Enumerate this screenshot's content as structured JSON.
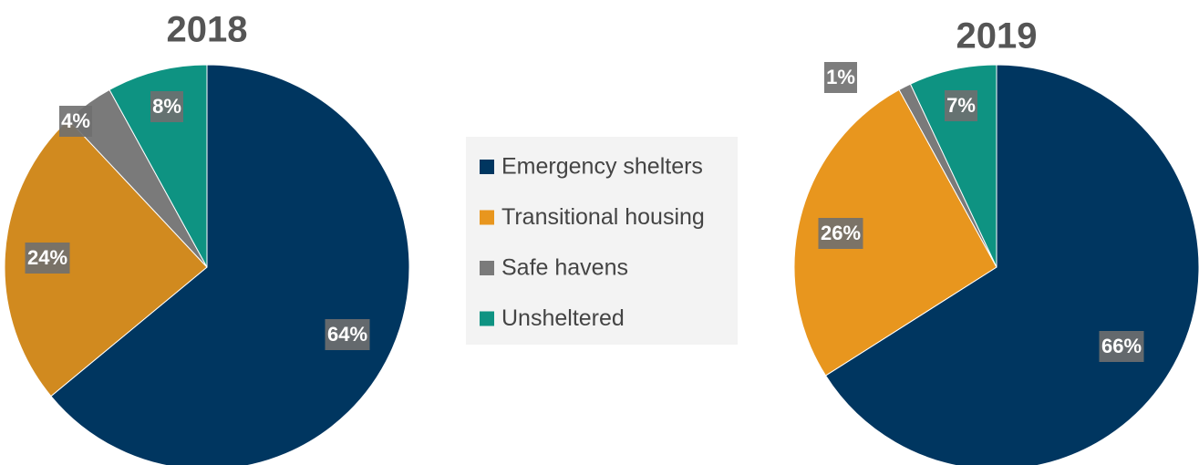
{
  "chart_data": [
    {
      "type": "pie",
      "title": "2018",
      "categories": [
        "Emergency shelters",
        "Transitional housing",
        "Safe havens",
        "Unsheltered"
      ],
      "values": [
        64,
        24,
        4,
        8
      ],
      "value_labels": [
        "64%",
        "24%",
        "4%",
        "8%"
      ],
      "colors": [
        "#003660",
        "#d18a1f",
        "#7a7a7a",
        "#0e9382"
      ]
    },
    {
      "type": "pie",
      "title": "2019",
      "categories": [
        "Emergency shelters",
        "Transitional housing",
        "Safe havens",
        "Unsheltered"
      ],
      "values": [
        66,
        26,
        1,
        7
      ],
      "value_labels": [
        "66%",
        "26%",
        "1%",
        "7%"
      ],
      "colors": [
        "#003660",
        "#e8961e",
        "#7a7a7a",
        "#0e9382"
      ]
    }
  ]
}
